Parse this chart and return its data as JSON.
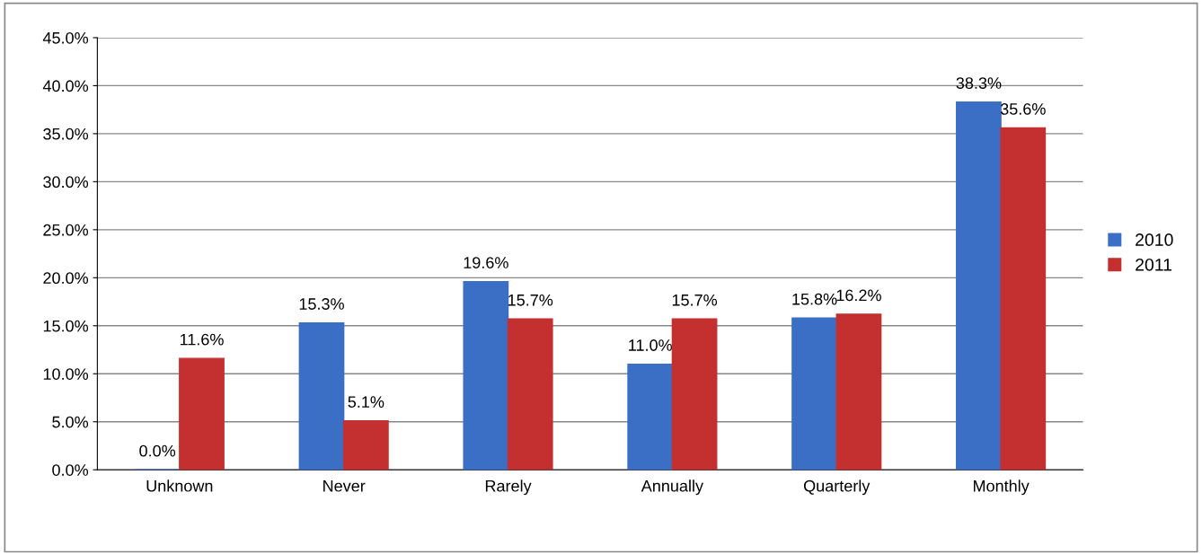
{
  "chart_data": {
    "type": "bar",
    "categories": [
      "Unknown",
      "Never",
      "Rarely",
      "Annually",
      "Quarterly",
      "Monthly"
    ],
    "series": [
      {
        "name": "2010",
        "color": "#3b6fc6",
        "values": [
          0.0,
          15.3,
          19.6,
          11.0,
          15.8,
          38.3
        ],
        "value_labels": [
          "0.0%",
          "15.3%",
          "19.6%",
          "11.0%",
          "15.8%",
          "38.3%"
        ]
      },
      {
        "name": "2011",
        "color": "#c42f2f",
        "values": [
          11.6,
          5.1,
          15.7,
          15.7,
          16.2,
          35.6
        ],
        "value_labels": [
          "11.6%",
          "5.1%",
          "15.7%",
          "15.7%",
          "16.2%",
          "35.6%"
        ]
      }
    ],
    "ylim": [
      0,
      45
    ],
    "yticks": [
      {
        "value": 0,
        "label": "0.0%"
      },
      {
        "value": 5,
        "label": "5.0%"
      },
      {
        "value": 10,
        "label": "10.0%"
      },
      {
        "value": 15,
        "label": "15.0%"
      },
      {
        "value": 20,
        "label": "20.0%"
      },
      {
        "value": 25,
        "label": "25.0%"
      },
      {
        "value": 30,
        "label": "30.0%"
      },
      {
        "value": 35,
        "label": "35.0%"
      },
      {
        "value": 40,
        "label": "40.0%"
      },
      {
        "value": 45,
        "label": "45.0%"
      }
    ],
    "grid": "y",
    "legend": "right"
  }
}
